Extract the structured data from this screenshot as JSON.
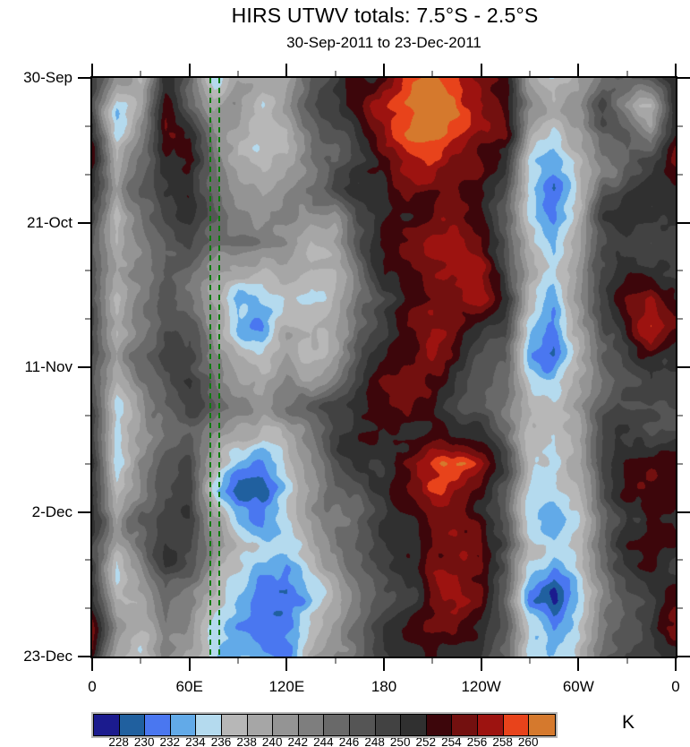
{
  "chart_data": {
    "type": "heatmap",
    "title": "HIRS UTWV totals: 7.5°S - 2.5°S",
    "subtitle": "30-Sep-2011 to 23-Dec-2011",
    "x_axis": {
      "min": 0,
      "max": 360,
      "major_step": 60,
      "minor_step": 30,
      "tick_labels": [
        "0",
        "60E",
        "120E",
        "180",
        "120W",
        "60W",
        "0"
      ]
    },
    "y_axis": {
      "min_day": 0,
      "max_day": 84,
      "major_step_days": 21,
      "minor_step_days": 7,
      "tick_labels": [
        "30-Sep",
        "21-Oct",
        "11-Nov",
        "2-Dec",
        "23-Dec"
      ],
      "direction": "top-to-bottom"
    },
    "reference_lines": {
      "style": "dashed",
      "color": "#0c7c0c",
      "positions_lon": [
        73,
        78.5
      ]
    },
    "colorbar": {
      "unit": "K",
      "boundary_labels": [
        "228",
        "230",
        "232",
        "234",
        "236",
        "238",
        "240",
        "242",
        "244",
        "246",
        "248",
        "250",
        "252",
        "254",
        "256",
        "258",
        "260"
      ],
      "colors": [
        "#1b1b8e",
        "#20609f",
        "#4a77f0",
        "#62aae8",
        "#b4daee",
        "#b7b7b7",
        "#a6a6a6",
        "#949494",
        "#7e7e7e",
        "#696969",
        "#555555",
        "#424242",
        "#303030",
        "#3d060b",
        "#73100f",
        "#9d1310",
        "#e8431b",
        "#d5792d"
      ]
    },
    "grid": {
      "description": "Brightness temperature (K) field; columns = longitude 0..360 step 15 deg; rows = days since 30-Sep-2011 step 4",
      "lon_step_deg": 15,
      "day_step": 4,
      "values": [
        [
          250,
          240,
          238,
          252,
          246,
          236,
          240,
          238,
          238,
          244,
          248,
          252,
          254,
          258,
          260,
          258,
          254,
          252,
          240,
          236,
          240,
          246,
          248,
          248,
          252
        ],
        [
          248,
          236,
          240,
          254,
          244,
          238,
          242,
          236,
          240,
          246,
          250,
          254,
          258,
          260,
          262,
          258,
          256,
          254,
          242,
          238,
          242,
          248,
          240,
          236,
          250
        ],
        [
          250,
          234,
          242,
          254,
          252,
          242,
          240,
          238,
          236,
          244,
          248,
          252,
          256,
          260,
          262,
          260,
          256,
          254,
          240,
          236,
          238,
          246,
          246,
          240,
          250
        ],
        [
          254,
          238,
          244,
          252,
          254,
          246,
          238,
          236,
          238,
          242,
          246,
          250,
          254,
          256,
          258,
          256,
          254,
          250,
          236,
          232,
          236,
          244,
          246,
          248,
          254
        ],
        [
          252,
          240,
          246,
          250,
          252,
          244,
          240,
          238,
          240,
          244,
          248,
          250,
          252,
          254,
          254,
          254,
          252,
          248,
          234,
          230,
          236,
          246,
          248,
          250,
          252
        ],
        [
          250,
          236,
          244,
          248,
          250,
          246,
          242,
          240,
          242,
          240,
          240,
          248,
          250,
          252,
          254,
          256,
          254,
          246,
          236,
          232,
          238,
          248,
          250,
          250,
          250
        ],
        [
          248,
          238,
          242,
          246,
          248,
          244,
          244,
          242,
          244,
          238,
          240,
          248,
          252,
          254,
          256,
          256,
          254,
          248,
          238,
          234,
          240,
          248,
          250,
          248,
          248
        ],
        [
          248,
          240,
          244,
          248,
          246,
          242,
          240,
          238,
          240,
          238,
          238,
          246,
          250,
          252,
          254,
          256,
          256,
          250,
          240,
          236,
          242,
          250,
          252,
          252,
          250
        ],
        [
          246,
          236,
          242,
          246,
          244,
          238,
          232,
          234,
          236,
          236,
          238,
          244,
          248,
          252,
          254,
          254,
          256,
          252,
          238,
          234,
          240,
          250,
          254,
          256,
          252
        ],
        [
          248,
          238,
          244,
          248,
          246,
          240,
          234,
          232,
          238,
          238,
          240,
          246,
          250,
          254,
          256,
          254,
          252,
          250,
          236,
          232,
          238,
          248,
          252,
          258,
          256
        ],
        [
          250,
          240,
          246,
          250,
          248,
          242,
          238,
          236,
          240,
          238,
          240,
          248,
          252,
          254,
          256,
          252,
          250,
          248,
          234,
          230,
          236,
          246,
          250,
          254,
          252
        ],
        [
          248,
          238,
          244,
          248,
          250,
          244,
          240,
          238,
          242,
          240,
          244,
          250,
          254,
          256,
          254,
          250,
          248,
          246,
          236,
          234,
          238,
          244,
          248,
          250,
          250
        ],
        [
          250,
          236,
          242,
          246,
          248,
          246,
          242,
          240,
          244,
          246,
          248,
          250,
          252,
          254,
          252,
          248,
          246,
          244,
          238,
          236,
          240,
          246,
          248,
          248,
          248
        ],
        [
          248,
          234,
          240,
          244,
          246,
          242,
          238,
          236,
          240,
          244,
          250,
          252,
          250,
          252,
          254,
          252,
          250,
          246,
          236,
          234,
          238,
          246,
          250,
          250,
          250
        ],
        [
          252,
          236,
          242,
          246,
          248,
          238,
          232,
          230,
          236,
          242,
          248,
          250,
          252,
          256,
          258,
          260,
          256,
          250,
          238,
          236,
          240,
          248,
          252,
          252,
          252
        ],
        [
          252,
          238,
          244,
          248,
          250,
          234,
          228,
          228,
          234,
          240,
          246,
          248,
          250,
          254,
          258,
          256,
          254,
          248,
          236,
          234,
          238,
          246,
          252,
          254,
          252
        ],
        [
          250,
          240,
          246,
          250,
          250,
          240,
          234,
          232,
          236,
          240,
          244,
          246,
          248,
          252,
          254,
          254,
          252,
          246,
          234,
          232,
          236,
          244,
          250,
          252,
          250
        ],
        [
          248,
          238,
          244,
          250,
          248,
          242,
          238,
          236,
          234,
          238,
          242,
          246,
          250,
          252,
          254,
          256,
          254,
          248,
          236,
          234,
          238,
          246,
          252,
          254,
          252
        ],
        [
          250,
          236,
          242,
          248,
          246,
          240,
          236,
          232,
          230,
          236,
          240,
          244,
          248,
          252,
          256,
          256,
          254,
          248,
          234,
          230,
          236,
          244,
          250,
          252,
          250
        ],
        [
          252,
          238,
          240,
          246,
          244,
          238,
          234,
          230,
          228,
          234,
          238,
          242,
          246,
          250,
          254,
          256,
          254,
          246,
          232,
          228,
          234,
          242,
          248,
          250,
          252
        ],
        [
          254,
          240,
          238,
          244,
          242,
          236,
          232,
          230,
          230,
          236,
          240,
          244,
          248,
          252,
          254,
          254,
          252,
          246,
          234,
          230,
          236,
          244,
          248,
          252,
          254
        ],
        [
          252,
          238,
          236,
          242,
          240,
          236,
          234,
          232,
          232,
          238,
          242,
          246,
          250,
          252,
          254,
          252,
          250,
          246,
          236,
          234,
          238,
          246,
          250,
          250,
          252
        ]
      ]
    },
    "value_domain": {
      "quantize_min": 226,
      "quantize_step": 2,
      "n_levels": 18
    }
  }
}
